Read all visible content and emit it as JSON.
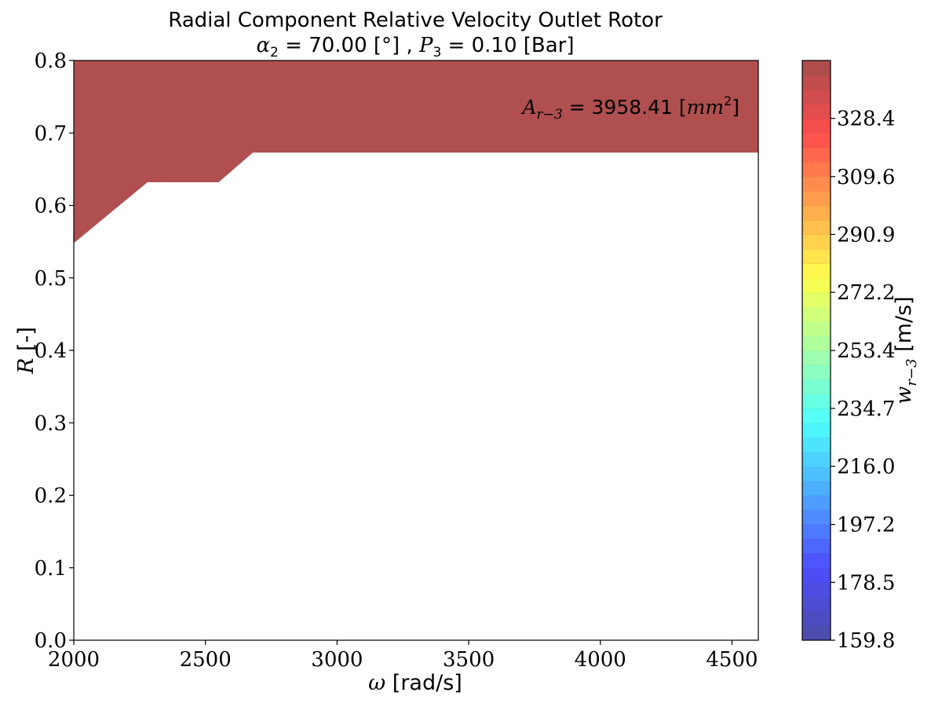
{
  "chart_data": {
    "type": "contour",
    "title": "Radial Component Relative Velocity Outlet Rotor",
    "subtitle": "α2 = 70.00 [°] , P3 = 0.10 [Bar]",
    "subtitle_parts": {
      "alpha_symbol": "α",
      "alpha_sub": "2",
      "alpha_value": " = 70.00 [°] , ",
      "p_symbol": "P",
      "p_sub": "3",
      "p_value": " = 0.10 [Bar]"
    },
    "xlabel": "ω [rad/s]",
    "xlabel_parts": {
      "symbol": "ω",
      "unit": " [rad/s]"
    },
    "ylabel": "R [-]",
    "ylabel_parts": {
      "symbol": "R",
      "unit": " [-]"
    },
    "xlim": [
      2000,
      4600
    ],
    "ylim": [
      0.0,
      0.8
    ],
    "xticks": [
      2000,
      2500,
      3000,
      3500,
      4000,
      4500
    ],
    "yticks": [
      "0.0",
      "0.1",
      "0.2",
      "0.3",
      "0.4",
      "0.5",
      "0.6",
      "0.7",
      "0.8"
    ],
    "grid": false,
    "filled_region": {
      "fill_color": "#b04f4f",
      "boundary": [
        {
          "x": 2000,
          "y": 0.548
        },
        {
          "x": 2280,
          "y": 0.632
        },
        {
          "x": 2550,
          "y": 0.632
        },
        {
          "x": 2680,
          "y": 0.673
        },
        {
          "x": 4600,
          "y": 0.673
        }
      ]
    },
    "annotation": {
      "text": "A_{r-3} = 3958.41 [mm^2]",
      "symbol": "A",
      "sub": "r−3",
      "eq": " = ",
      "value": "3958.41",
      "unit_open": " [",
      "unit": "mm",
      "sup": "2",
      "unit_close": "]",
      "position": "top-right"
    },
    "colorbar": {
      "label": "w_{r-3} [m/s]",
      "label_symbol": "w",
      "label_sub": "r−3",
      "label_unit": " [m/s]",
      "vmin": 159.8,
      "vmax": 347.1,
      "levels": 40,
      "ticks": [
        159.8,
        178.5,
        197.2,
        216.0,
        234.7,
        253.4,
        272.2,
        290.9,
        309.6,
        328.4
      ],
      "tick_labels": [
        "159.8",
        "178.5",
        "197.2",
        "216.0",
        "234.7",
        "253.4",
        "272.2",
        "290.9",
        "309.6",
        "328.4"
      ],
      "colormap": "jet",
      "alpha": 0.7
    }
  }
}
